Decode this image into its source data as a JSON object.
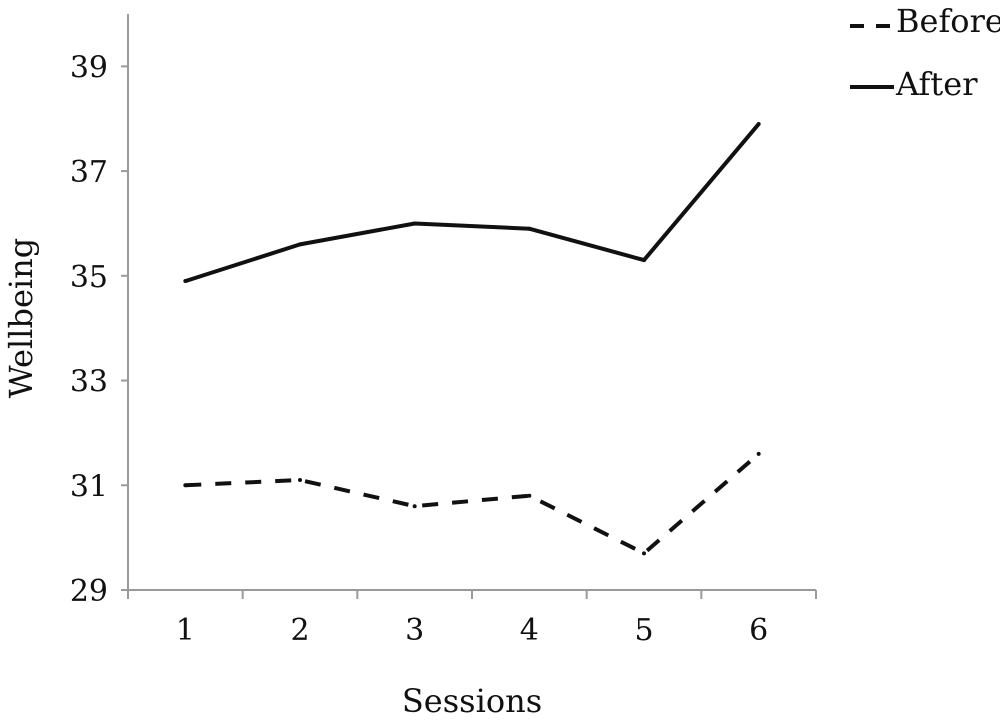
{
  "chart_data": {
    "type": "line",
    "xlabel": "Sessions",
    "ylabel": "Wellbeing",
    "categories": [
      "1",
      "2",
      "3",
      "4",
      "5",
      "6"
    ],
    "yticks": [
      29,
      31,
      33,
      35,
      37,
      39
    ],
    "ylim": [
      29,
      40
    ],
    "grid": false,
    "legend_position": "top-right",
    "series": [
      {
        "name": "Before",
        "style": "dashed",
        "color": "#111111",
        "values": [
          31.0,
          31.1,
          30.6,
          30.8,
          29.7,
          31.6
        ]
      },
      {
        "name": "After",
        "style": "solid",
        "color": "#111111",
        "values": [
          34.9,
          35.6,
          36.0,
          35.9,
          35.3,
          37.9
        ]
      }
    ]
  }
}
